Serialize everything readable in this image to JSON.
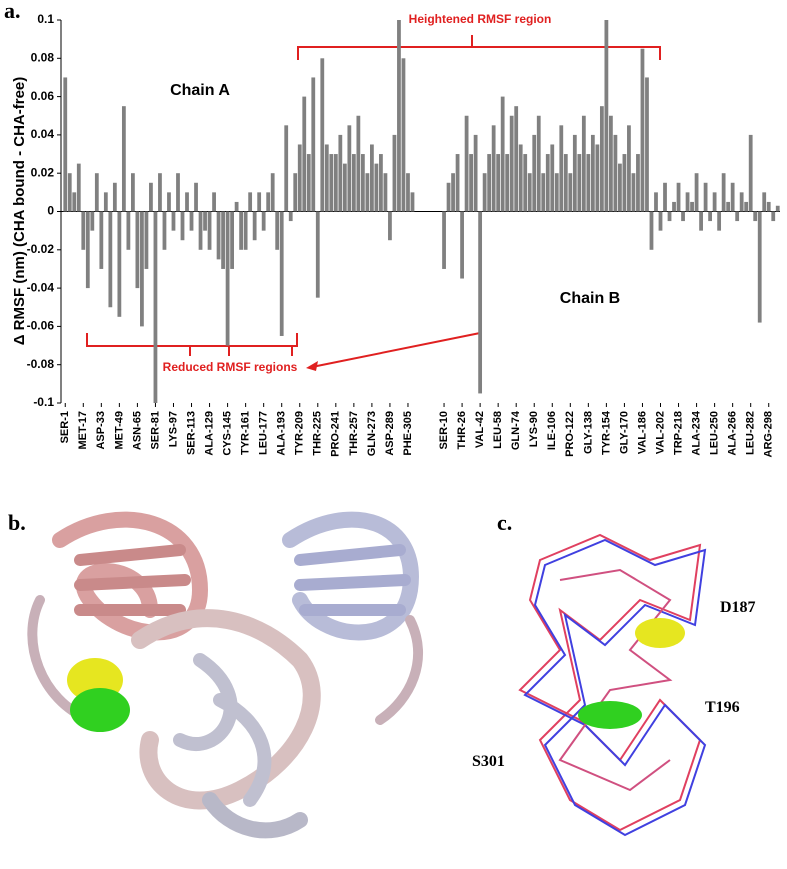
{
  "chart_data": {
    "type": "bar",
    "panel_label": "a.",
    "ylabel": "Δ RMSF (nm) (CHA bound - CHA-free)",
    "annotations": {
      "chain_a": "Chain A",
      "chain_b": "Chain B",
      "heightened": "Heightened RMSF region",
      "reduced": "Reduced RMSF regions"
    },
    "color": "#808080",
    "ylim": [
      -0.1,
      0.1
    ],
    "yticks": [
      -0.1,
      -0.08,
      -0.06,
      -0.04,
      -0.02,
      0,
      0.02,
      0.04,
      0.06,
      0.08,
      0.1
    ],
    "categories": [
      "SER-1",
      null,
      null,
      null,
      "MET-17",
      null,
      null,
      null,
      "ASP-33",
      null,
      null,
      null,
      "MET-49",
      null,
      null,
      null,
      "ASN-65",
      null,
      null,
      null,
      "SER-81",
      null,
      null,
      null,
      "LYS-97",
      null,
      null,
      null,
      "SER-113",
      null,
      null,
      null,
      "ALA-129",
      null,
      null,
      null,
      "CYS-145",
      null,
      null,
      null,
      "TYR-161",
      null,
      null,
      null,
      "LEU-177",
      null,
      null,
      null,
      "ALA-193",
      null,
      null,
      null,
      "TYR-209",
      null,
      null,
      null,
      "THR-225",
      null,
      null,
      null,
      "PRO-241",
      null,
      null,
      null,
      "THR-257",
      null,
      null,
      null,
      "GLN-273",
      null,
      null,
      null,
      "ASP-289",
      null,
      null,
      null,
      "PHE-305",
      null,
      null,
      null,
      null,
      null,
      null,
      null,
      "SER-10",
      null,
      null,
      null,
      "THR-26",
      null,
      null,
      null,
      "VAL-42",
      null,
      null,
      null,
      "LEU-58",
      null,
      null,
      null,
      "GLN-74",
      null,
      null,
      null,
      "LYS-90",
      null,
      null,
      null,
      "ILE-106",
      null,
      null,
      null,
      "PRO-122",
      null,
      null,
      null,
      "GLY-138",
      null,
      null,
      null,
      "TYR-154",
      null,
      null,
      null,
      "GLY-170",
      null,
      null,
      null,
      "VAL-186",
      null,
      null,
      null,
      "VAL-202",
      null,
      null,
      null,
      "TRP-218",
      null,
      null,
      null,
      "ALA-234",
      null,
      null,
      null,
      "LEU-250",
      null,
      null,
      null,
      "ALA-266",
      null,
      null,
      null,
      "LEU-282",
      null,
      null,
      null,
      "ARG-298",
      null,
      null
    ],
    "values": [
      0.07,
      0.02,
      0.01,
      0.025,
      -0.02,
      -0.04,
      -0.01,
      0.02,
      -0.03,
      0.01,
      -0.05,
      0.015,
      -0.055,
      0.055,
      -0.02,
      0.02,
      -0.04,
      -0.06,
      -0.03,
      0.015,
      -0.1,
      0.02,
      -0.02,
      0.01,
      -0.01,
      0.02,
      -0.015,
      0.01,
      -0.01,
      0.015,
      -0.02,
      -0.01,
      -0.02,
      0.01,
      -0.025,
      -0.03,
      -0.07,
      -0.03,
      0.005,
      -0.02,
      -0.02,
      0.01,
      -0.015,
      0.01,
      -0.01,
      0.01,
      0.02,
      -0.02,
      -0.065,
      0.045,
      -0.005,
      0.02,
      0.035,
      0.06,
      0.03,
      0.07,
      -0.045,
      0.08,
      0.035,
      0.03,
      0.03,
      0.04,
      0.025,
      0.045,
      0.03,
      0.05,
      0.03,
      0.02,
      0.035,
      0.025,
      0.03,
      0.02,
      -0.015,
      0.04,
      0.1,
      0.08,
      0.02,
      0.01,
      null,
      null,
      null,
      null,
      null,
      null,
      -0.03,
      0.015,
      0.02,
      0.03,
      -0.035,
      0.05,
      0.03,
      0.04,
      -0.095,
      0.02,
      0.03,
      0.045,
      0.03,
      0.06,
      0.03,
      0.05,
      0.055,
      0.035,
      0.03,
      0.02,
      0.04,
      0.05,
      0.02,
      0.03,
      0.035,
      0.02,
      0.045,
      0.03,
      0.02,
      0.04,
      0.03,
      0.05,
      0.03,
      0.04,
      0.035,
      0.055,
      0.1,
      0.05,
      0.04,
      0.025,
      0.03,
      0.045,
      0.02,
      0.03,
      0.085,
      0.07,
      -0.02,
      0.01,
      -0.01,
      0.015,
      -0.005,
      0.005,
      0.015,
      -0.005,
      0.01,
      0.005,
      0.02,
      -0.01,
      0.015,
      -0.005,
      0.01,
      -0.01,
      0.02,
      0.005,
      0.015,
      -0.005,
      0.01,
      0.005,
      0.04,
      -0.005,
      -0.058,
      0.01,
      0.005,
      -0.005,
      0.003
    ]
  },
  "panels": {
    "b": {
      "label": "b."
    },
    "c": {
      "label": "c.",
      "residues": [
        "D187",
        "T196",
        "S301"
      ]
    }
  }
}
